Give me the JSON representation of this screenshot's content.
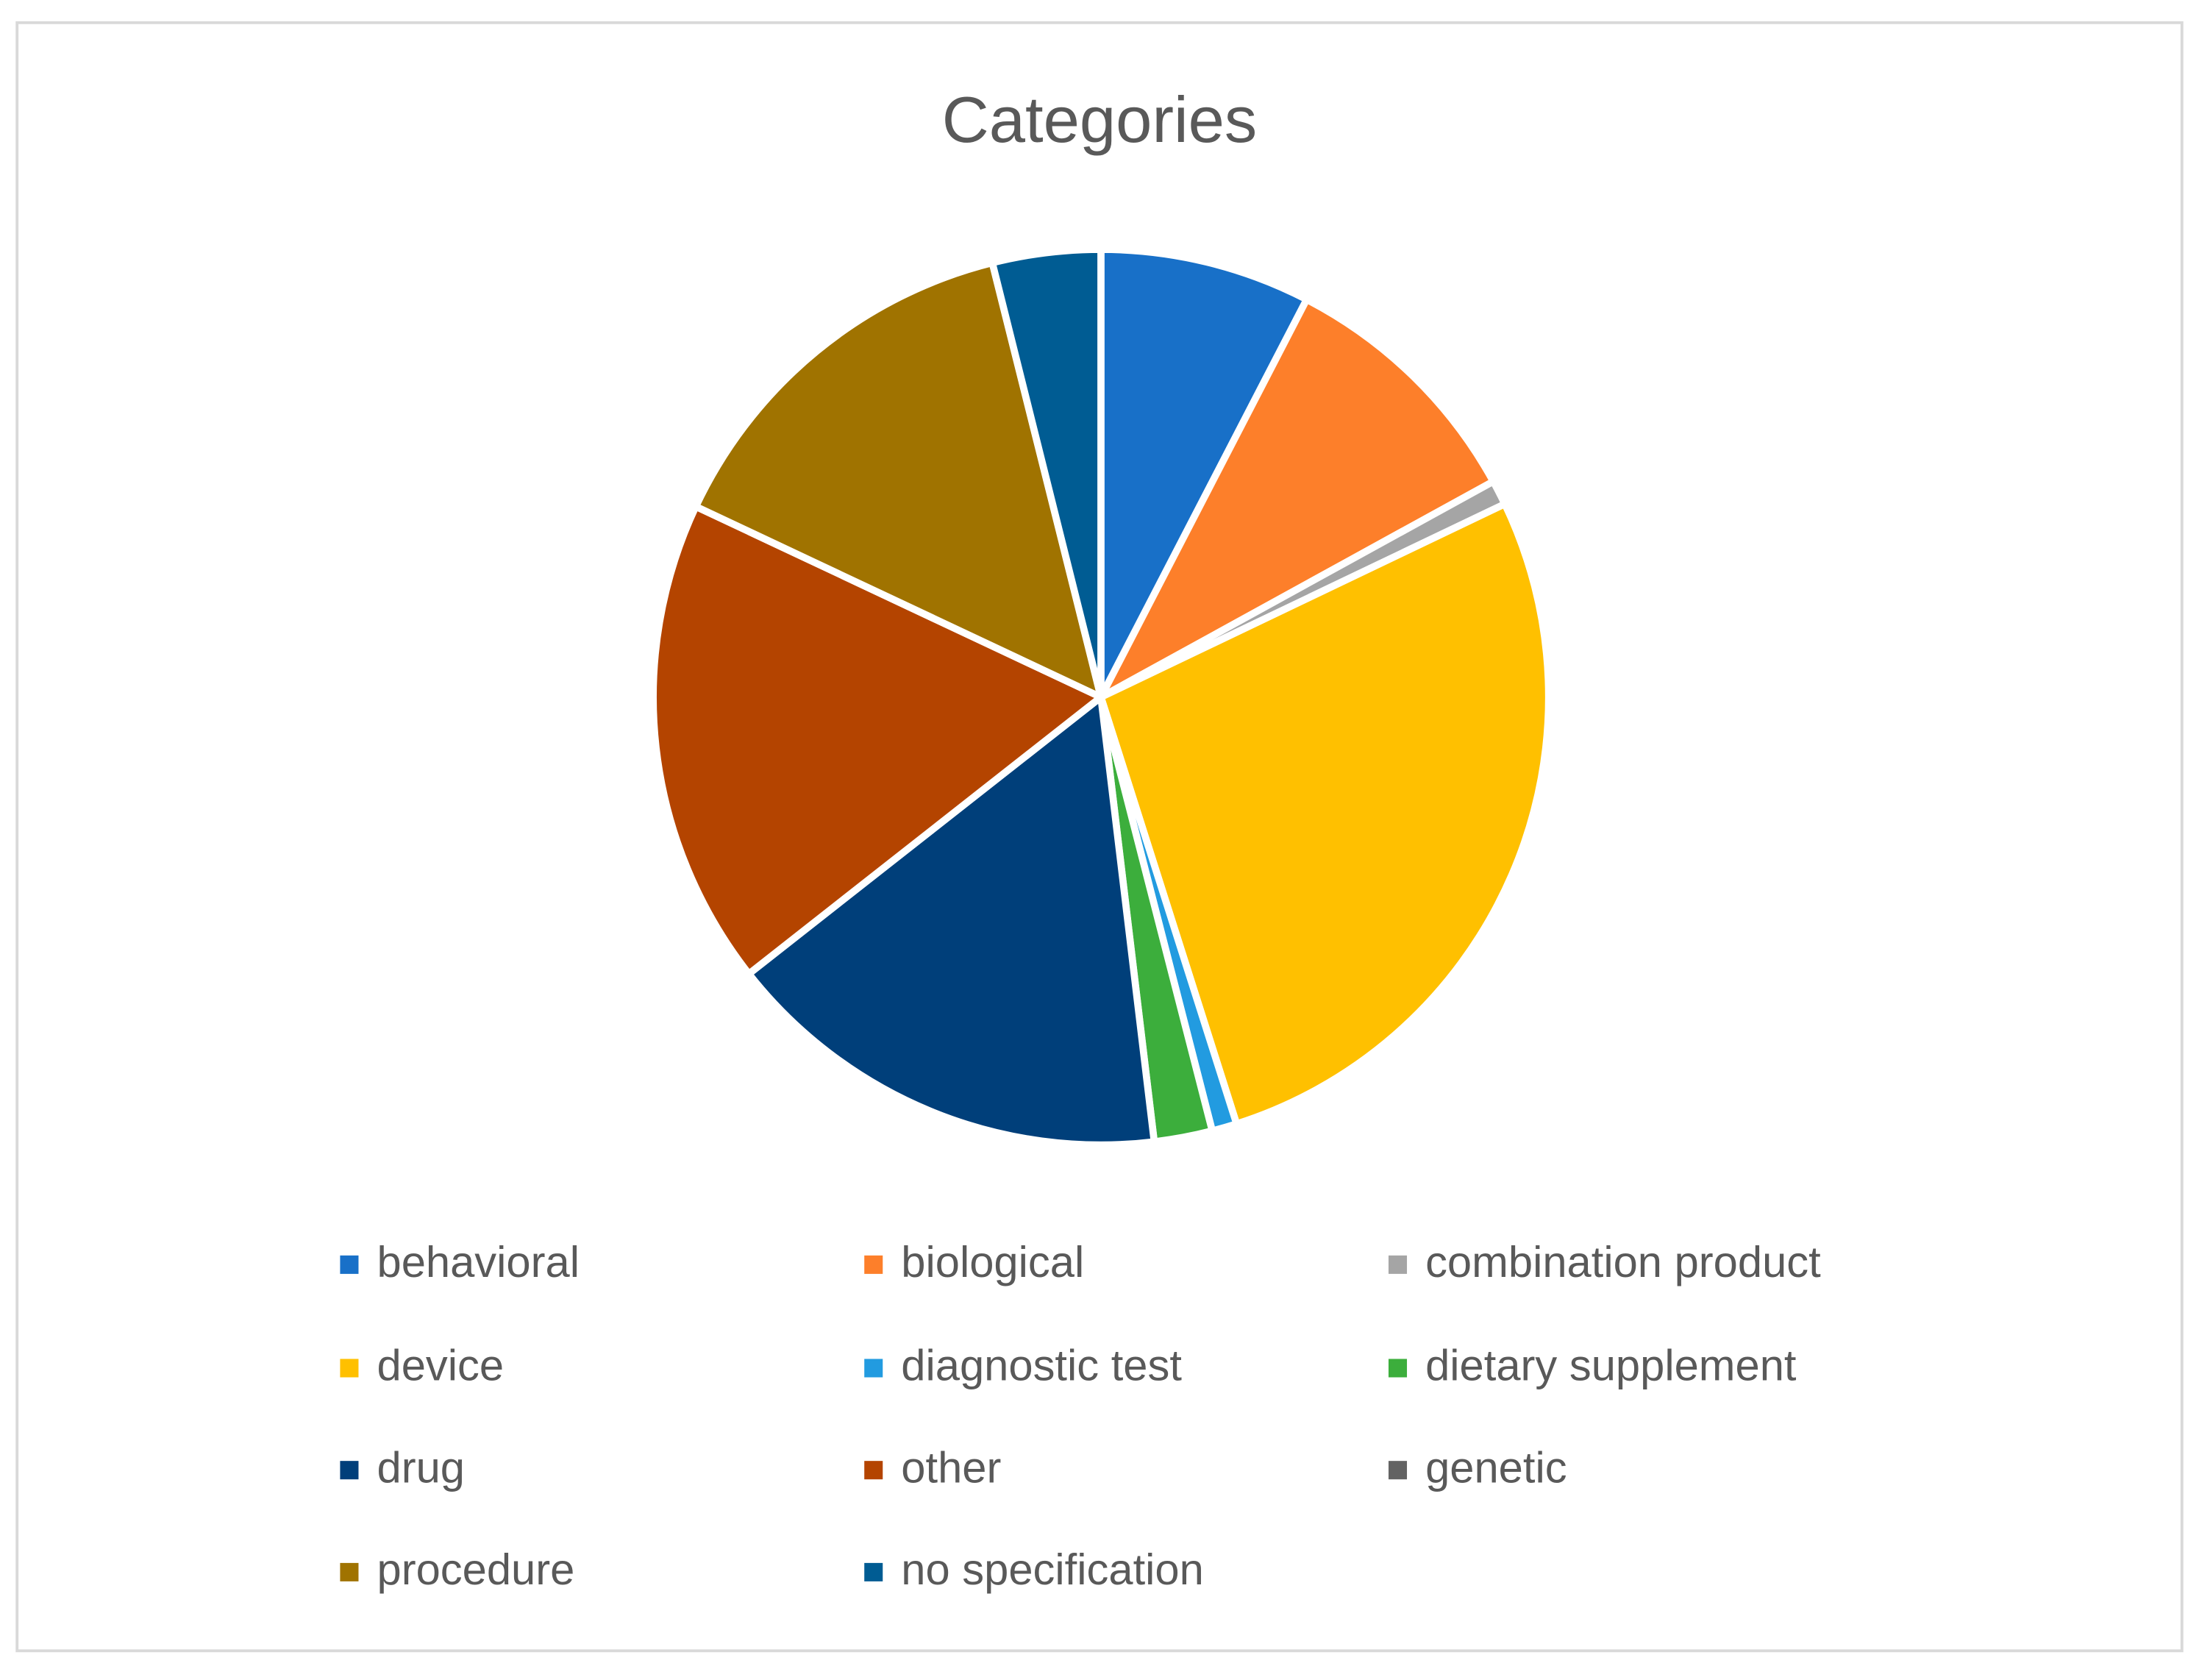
{
  "chart_data": {
    "type": "pie",
    "title": "Categories",
    "categories": [
      "behavioral",
      "biological",
      "combination product",
      "device",
      "diagnostic test",
      "dietary supplement",
      "drug",
      "other",
      "genetic",
      "procedure",
      "no specification"
    ],
    "values": [
      7.6,
      9.4,
      0.9,
      27.2,
      0.9,
      2.1,
      16.3,
      17.6,
      0,
      14.1,
      3.9
    ],
    "colors": [
      "#1870c8",
      "#fd7f2a",
      "#a5a5a5",
      "#ffc000",
      "#229be0",
      "#3cae3c",
      "#003f7a",
      "#b44400",
      "#636363",
      "#a07300",
      "#005c93"
    ],
    "legend": "bottom"
  }
}
